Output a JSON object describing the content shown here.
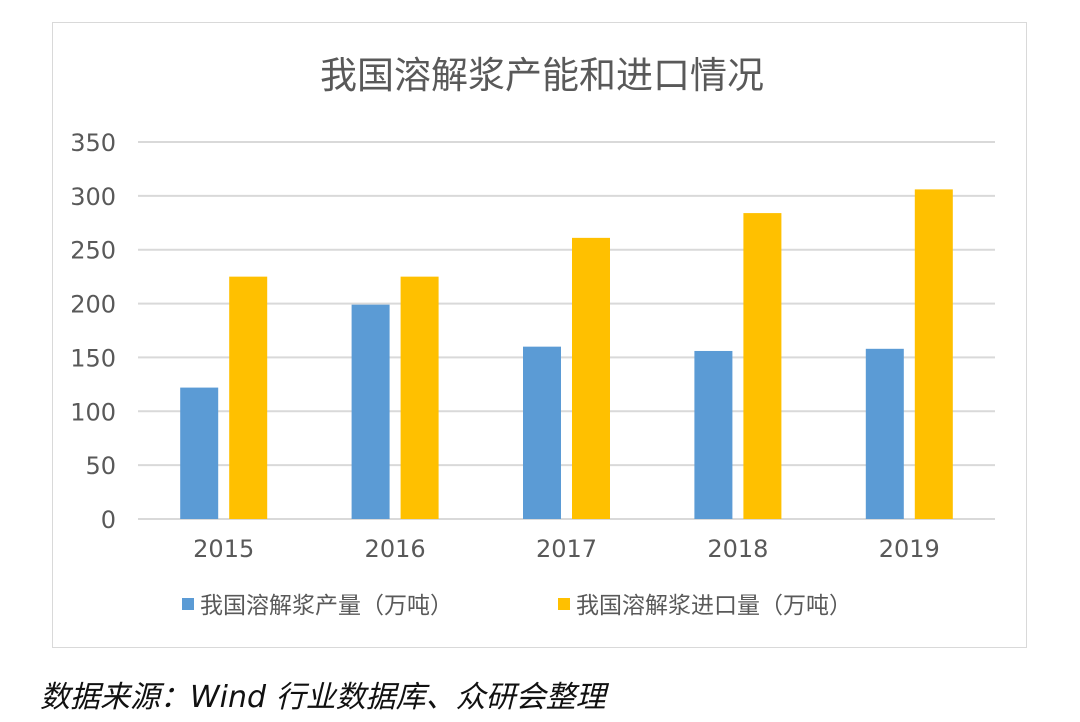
{
  "chart_data": {
    "type": "bar",
    "title": "我国溶解浆产能和进口情况",
    "categories": [
      "2015",
      "2016",
      "2017",
      "2018",
      "2019"
    ],
    "series": [
      {
        "name": "我国溶解浆产量（万吨）",
        "color": "#5b9bd5",
        "values": [
          122,
          199,
          160,
          156,
          158
        ]
      },
      {
        "name": "我国溶解浆进口量（万吨）",
        "color": "#ffc000",
        "values": [
          225,
          225,
          261,
          284,
          306
        ]
      }
    ],
    "yticks": [
      0,
      50,
      100,
      150,
      200,
      250,
      300,
      350
    ],
    "ylim": [
      0,
      350
    ],
    "xlabel": "",
    "ylabel": "",
    "grid": true,
    "legend": "bottom"
  },
  "source": "数据来源：Wind 行业数据库、众研会整理"
}
